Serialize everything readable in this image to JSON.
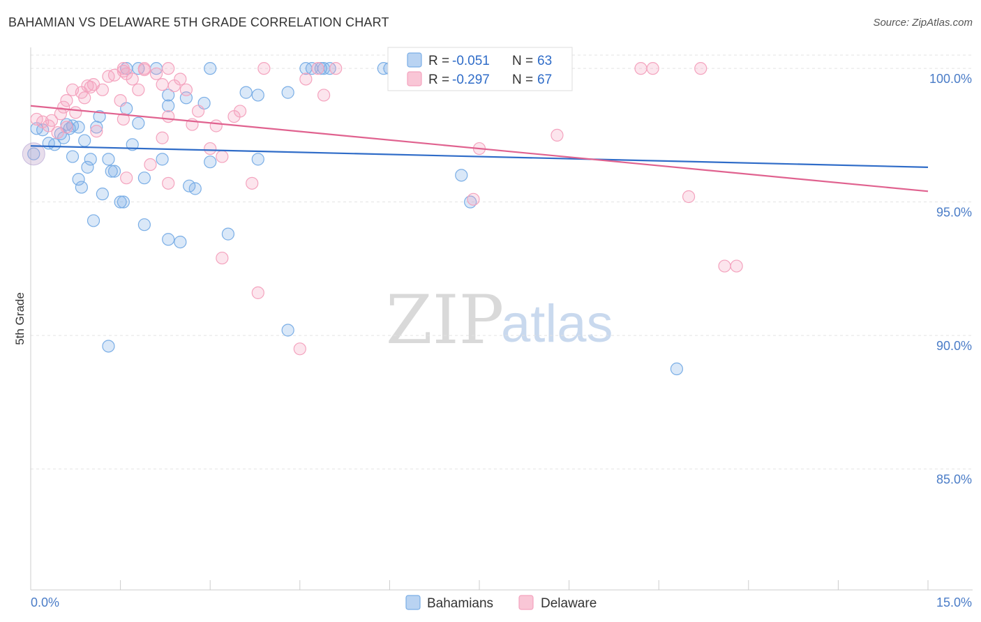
{
  "title": "BAHAMIAN VS DELAWARE 5TH GRADE CORRELATION CHART",
  "source": "Source: ZipAtlas.com",
  "watermark": {
    "zip": "ZIP",
    "atlas": "atlas"
  },
  "chart_data": {
    "type": "scatter",
    "title": "BAHAMIAN VS DELAWARE 5TH GRADE CORRELATION CHART",
    "xlabel": "",
    "ylabel": "5th Grade",
    "xlim": [
      0,
      15
    ],
    "ylim": [
      80.5,
      100.5
    ],
    "x_tick_labels": [
      {
        "value": 0,
        "label": "0.0%"
      },
      {
        "value": 15,
        "label": "15.0%"
      }
    ],
    "y_tick_labels": [
      {
        "value": 100,
        "label": "100.0%"
      },
      {
        "value": 95,
        "label": "95.0%"
      },
      {
        "value": 90,
        "label": "90.0%"
      },
      {
        "value": 85,
        "label": "85.0%"
      }
    ],
    "grid": true,
    "legend_placement": "top-center",
    "series": [
      {
        "name": "Bahamians",
        "color": "#7aaee6",
        "line_color": "#2f6cc8",
        "R": "-0.051",
        "N": "63",
        "trend": [
          [
            0,
            97.1
          ],
          [
            15,
            96.3
          ]
        ],
        "points": [
          [
            0.1,
            97.75
          ],
          [
            0.2,
            97.7
          ],
          [
            0.3,
            97.2
          ],
          [
            0.4,
            97.15
          ],
          [
            0.5,
            97.55
          ],
          [
            0.55,
            97.4
          ],
          [
            0.6,
            97.9
          ],
          [
            0.65,
            97.75
          ],
          [
            0.7,
            97.85
          ],
          [
            0.8,
            97.8
          ],
          [
            0.9,
            97.3
          ],
          [
            0.7,
            96.7
          ],
          [
            0.95,
            96.3
          ],
          [
            1.0,
            96.6
          ],
          [
            1.3,
            96.6
          ],
          [
            1.35,
            96.15
          ],
          [
            1.4,
            96.15
          ],
          [
            0.8,
            95.85
          ],
          [
            0.85,
            95.55
          ],
          [
            1.2,
            95.3
          ],
          [
            1.5,
            95.0
          ],
          [
            1.55,
            95.0
          ],
          [
            1.1,
            97.8
          ],
          [
            1.15,
            98.2
          ],
          [
            1.6,
            98.5
          ],
          [
            1.8,
            97.95
          ],
          [
            1.7,
            97.15
          ],
          [
            1.9,
            95.9
          ],
          [
            1.9,
            94.15
          ],
          [
            2.2,
            96.6
          ],
          [
            2.3,
            98.6
          ],
          [
            2.3,
            99.0
          ],
          [
            2.6,
            98.9
          ],
          [
            2.9,
            98.7
          ],
          [
            3.0,
            96.5
          ],
          [
            2.65,
            95.6
          ],
          [
            2.75,
            95.5
          ],
          [
            2.3,
            93.6
          ],
          [
            2.5,
            93.5
          ],
          [
            3.3,
            93.8
          ],
          [
            1.05,
            94.3
          ],
          [
            1.3,
            89.6
          ],
          [
            3.8,
            96.6
          ],
          [
            3.6,
            99.1
          ],
          [
            3.8,
            99.0
          ],
          [
            4.3,
            99.1
          ],
          [
            4.7,
            100.0
          ],
          [
            4.9,
            100.0
          ],
          [
            4.85,
            100.0
          ],
          [
            5.0,
            100.0
          ],
          [
            6.0,
            100.0
          ],
          [
            6.1,
            100.0
          ],
          [
            5.9,
            100.0
          ],
          [
            4.3,
            90.2
          ],
          [
            7.2,
            96.0
          ],
          [
            7.35,
            95.0
          ],
          [
            10.8,
            88.75
          ],
          [
            3.0,
            100.0
          ],
          [
            2.1,
            100.0
          ],
          [
            1.6,
            100.0
          ],
          [
            1.8,
            100.0
          ],
          [
            4.6,
            100.0
          ],
          [
            0.05,
            96.8
          ]
        ]
      },
      {
        "name": "Delaware",
        "color": "#f4a3be",
        "line_color": "#e0628f",
        "R": "-0.297",
        "N": "67",
        "trend": [
          [
            0,
            98.6
          ],
          [
            15,
            95.4
          ]
        ],
        "points": [
          [
            0.1,
            98.1
          ],
          [
            0.2,
            98.0
          ],
          [
            0.3,
            97.85
          ],
          [
            0.35,
            98.05
          ],
          [
            0.45,
            97.6
          ],
          [
            0.5,
            98.3
          ],
          [
            0.55,
            98.55
          ],
          [
            0.6,
            98.8
          ],
          [
            0.7,
            99.2
          ],
          [
            0.75,
            98.35
          ],
          [
            0.85,
            99.1
          ],
          [
            0.9,
            98.9
          ],
          [
            0.95,
            99.35
          ],
          [
            1.0,
            99.3
          ],
          [
            1.05,
            99.4
          ],
          [
            1.2,
            99.2
          ],
          [
            1.3,
            99.7
          ],
          [
            1.4,
            99.75
          ],
          [
            1.55,
            99.9
          ],
          [
            1.6,
            99.8
          ],
          [
            1.7,
            99.6
          ],
          [
            1.8,
            99.2
          ],
          [
            1.9,
            99.95
          ],
          [
            2.1,
            99.8
          ],
          [
            2.2,
            99.4
          ],
          [
            2.4,
            99.35
          ],
          [
            2.5,
            99.6
          ],
          [
            2.6,
            99.2
          ],
          [
            2.3,
            98.2
          ],
          [
            2.7,
            97.9
          ],
          [
            2.8,
            98.4
          ],
          [
            3.1,
            97.85
          ],
          [
            3.4,
            98.2
          ],
          [
            3.5,
            98.4
          ],
          [
            3.0,
            97.0
          ],
          [
            3.2,
            96.7
          ],
          [
            1.55,
            98.1
          ],
          [
            1.1,
            97.65
          ],
          [
            1.5,
            98.8
          ],
          [
            1.6,
            95.9
          ],
          [
            2.0,
            96.4
          ],
          [
            2.2,
            97.4
          ],
          [
            2.3,
            95.7
          ],
          [
            3.7,
            95.7
          ],
          [
            3.2,
            92.9
          ],
          [
            3.8,
            91.6
          ],
          [
            4.5,
            89.5
          ],
          [
            4.6,
            99.6
          ],
          [
            4.9,
            99.0
          ],
          [
            4.8,
            100.0
          ],
          [
            5.1,
            100.0
          ],
          [
            6.3,
            100.0
          ],
          [
            7.8,
            100.0
          ],
          [
            7.5,
            97.0
          ],
          [
            8.8,
            97.5
          ],
          [
            7.4,
            95.1
          ],
          [
            10.2,
            100.0
          ],
          [
            10.4,
            100.0
          ],
          [
            11.2,
            100.0
          ],
          [
            11.0,
            95.2
          ],
          [
            11.6,
            92.6
          ],
          [
            11.8,
            92.6
          ],
          [
            1.9,
            100.0
          ],
          [
            2.3,
            100.0
          ],
          [
            3.9,
            100.0
          ],
          [
            1.55,
            100.0
          ],
          [
            0.6,
            97.8
          ]
        ]
      }
    ]
  },
  "legend": {
    "r_label": "R = ",
    "n_label": "N = "
  }
}
